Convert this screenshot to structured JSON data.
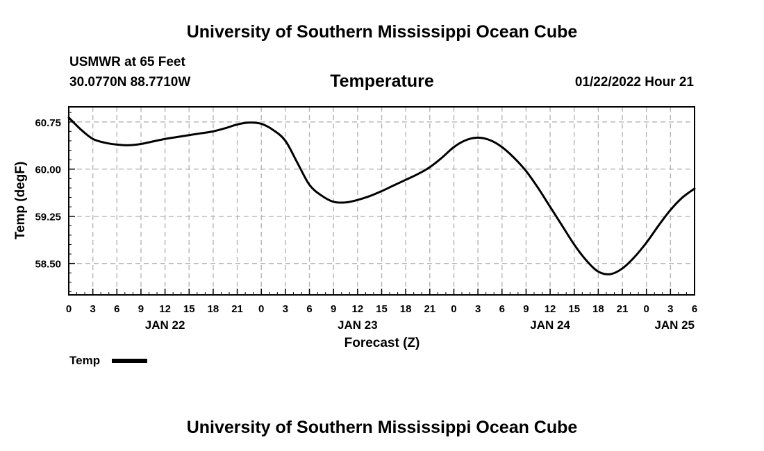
{
  "header": {
    "title": "University of Southern Mississippi Ocean Cube",
    "station": "USMWR at 65 Feet",
    "coords": "30.0770N  88.7710W",
    "datetime": "01/22/2022 Hour 21"
  },
  "footer": {
    "title": "University of Southern Mississippi Ocean Cube"
  },
  "chart_data": {
    "type": "line",
    "title": "Temperature",
    "xlabel": "Forecast (Z)",
    "ylabel": "Temp (degF)",
    "grid": true,
    "legend_position": "bottom-left",
    "xlim": [
      0,
      78
    ],
    "ylim": [
      58.0,
      60.99
    ],
    "yticks": [
      58.5,
      59.25,
      60.0,
      60.75
    ],
    "ytick_labels": [
      "58.50",
      "59.25",
      "60.00",
      "60.75"
    ],
    "xticks": [
      0,
      3,
      6,
      9,
      12,
      15,
      18,
      21,
      24,
      27,
      30,
      33,
      36,
      39,
      42,
      45,
      48,
      51,
      54,
      57,
      60,
      63,
      66,
      69,
      72,
      75,
      78
    ],
    "xtick_labels": [
      "0",
      "3",
      "6",
      "9",
      "12",
      "15",
      "18",
      "21",
      "0",
      "3",
      "6",
      "9",
      "12",
      "15",
      "18",
      "21",
      "0",
      "3",
      "6",
      "9",
      "12",
      "15",
      "18",
      "21",
      "0",
      "3",
      "6"
    ],
    "date_labels": [
      {
        "x": 12,
        "label": "JAN 22"
      },
      {
        "x": 36,
        "label": "JAN 23"
      },
      {
        "x": 60,
        "label": "JAN 24"
      },
      {
        "x": 78,
        "label": "JAN 25"
      }
    ],
    "series": [
      {
        "name": "Temp",
        "color": "#000000",
        "x": [
          0,
          1.5,
          3,
          4.5,
          6,
          7.5,
          9,
          10.5,
          12,
          13.5,
          15,
          16.5,
          18,
          19.5,
          21,
          22.5,
          24,
          25.5,
          27,
          28.5,
          30,
          31.5,
          33,
          34.5,
          36,
          37.5,
          39,
          40.5,
          42,
          43.5,
          45,
          46.5,
          48,
          49.5,
          51,
          52.5,
          54,
          55.5,
          57,
          58.5,
          60,
          61.5,
          63,
          64.5,
          66,
          67.5,
          69,
          70.5,
          72,
          73.5,
          75,
          76.5,
          78
        ],
        "values": [
          60.82,
          60.63,
          60.48,
          60.42,
          60.39,
          60.38,
          60.4,
          60.44,
          60.48,
          60.51,
          60.54,
          60.57,
          60.6,
          60.65,
          60.71,
          60.74,
          60.72,
          60.62,
          60.45,
          60.1,
          59.75,
          59.58,
          59.48,
          59.47,
          59.51,
          59.57,
          59.65,
          59.74,
          59.83,
          59.92,
          60.03,
          60.18,
          60.35,
          60.46,
          60.5,
          60.46,
          60.35,
          60.18,
          59.97,
          59.7,
          59.4,
          59.1,
          58.8,
          58.55,
          58.37,
          58.33,
          58.42,
          58.6,
          58.83,
          59.1,
          59.35,
          59.55,
          59.69
        ]
      }
    ],
    "legend": [
      {
        "label": "Temp",
        "color": "#000000"
      }
    ]
  }
}
